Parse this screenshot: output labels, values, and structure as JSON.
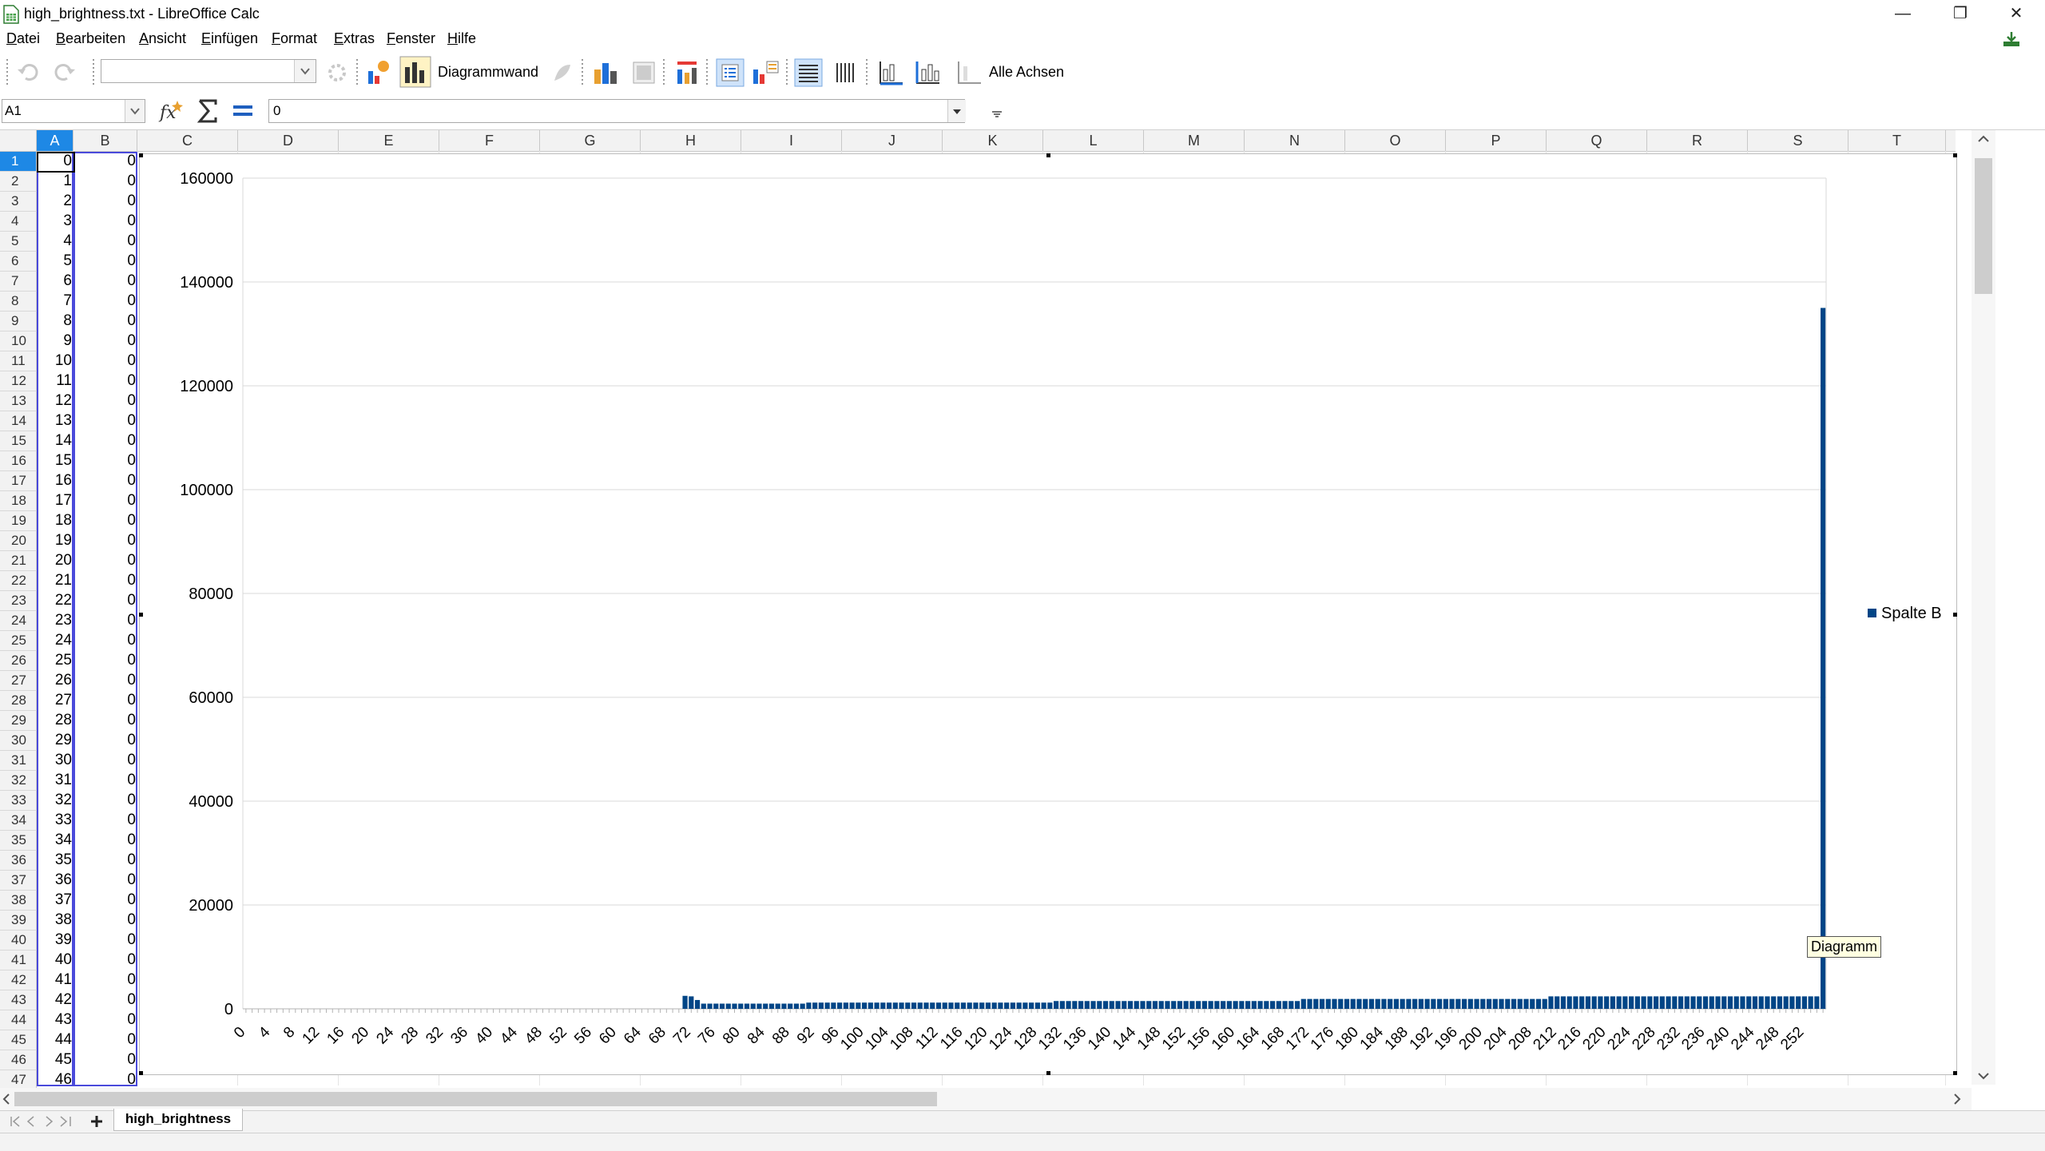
{
  "window": {
    "title": "high_brightness.txt - LibreOffice Calc",
    "buttons": {
      "minimize": "—",
      "maximize": "❐",
      "close": "✕"
    }
  },
  "menu": [
    "Datei",
    "Bearbeiten",
    "Ansicht",
    "Einfügen",
    "Format",
    "Extras",
    "Fenster",
    "Hilfe"
  ],
  "toolbar": {
    "object_select_value": "",
    "chart_wall_label": "Diagrammwand",
    "all_axes_label": "Alle Achsen"
  },
  "formula": {
    "name_box": "A1",
    "content": "0"
  },
  "columns": [
    "A",
    "B",
    "C",
    "D",
    "E",
    "F",
    "G",
    "H",
    "I",
    "J",
    "K",
    "L",
    "M",
    "N",
    "O",
    "P",
    "Q",
    "R",
    "S",
    "T"
  ],
  "rows": [
    {
      "n": "1",
      "a": "0",
      "b": "0"
    },
    {
      "n": "2",
      "a": "1",
      "b": "0"
    },
    {
      "n": "3",
      "a": "2",
      "b": "0"
    },
    {
      "n": "4",
      "a": "3",
      "b": "0"
    },
    {
      "n": "5",
      "a": "4",
      "b": "0"
    },
    {
      "n": "6",
      "a": "5",
      "b": "0"
    },
    {
      "n": "7",
      "a": "6",
      "b": "0"
    },
    {
      "n": "8",
      "a": "7",
      "b": "0"
    },
    {
      "n": "9",
      "a": "8",
      "b": "0"
    },
    {
      "n": "10",
      "a": "9",
      "b": "0"
    },
    {
      "n": "11",
      "a": "10",
      "b": "0"
    },
    {
      "n": "12",
      "a": "11",
      "b": "0"
    },
    {
      "n": "13",
      "a": "12",
      "b": "0"
    },
    {
      "n": "14",
      "a": "13",
      "b": "0"
    },
    {
      "n": "15",
      "a": "14",
      "b": "0"
    },
    {
      "n": "16",
      "a": "15",
      "b": "0"
    },
    {
      "n": "17",
      "a": "16",
      "b": "0"
    },
    {
      "n": "18",
      "a": "17",
      "b": "0"
    },
    {
      "n": "19",
      "a": "18",
      "b": "0"
    },
    {
      "n": "20",
      "a": "19",
      "b": "0"
    },
    {
      "n": "21",
      "a": "20",
      "b": "0"
    },
    {
      "n": "22",
      "a": "21",
      "b": "0"
    },
    {
      "n": "23",
      "a": "22",
      "b": "0"
    },
    {
      "n": "24",
      "a": "23",
      "b": "0"
    },
    {
      "n": "25",
      "a": "24",
      "b": "0"
    },
    {
      "n": "26",
      "a": "25",
      "b": "0"
    },
    {
      "n": "27",
      "a": "26",
      "b": "0"
    },
    {
      "n": "28",
      "a": "27",
      "b": "0"
    },
    {
      "n": "29",
      "a": "28",
      "b": "0"
    },
    {
      "n": "30",
      "a": "29",
      "b": "0"
    },
    {
      "n": "31",
      "a": "30",
      "b": "0"
    },
    {
      "n": "32",
      "a": "31",
      "b": "0"
    },
    {
      "n": "33",
      "a": "32",
      "b": "0"
    },
    {
      "n": "34",
      "a": "33",
      "b": "0"
    },
    {
      "n": "35",
      "a": "34",
      "b": "0"
    },
    {
      "n": "36",
      "a": "35",
      "b": "0"
    },
    {
      "n": "37",
      "a": "36",
      "b": "0"
    },
    {
      "n": "38",
      "a": "37",
      "b": "0"
    },
    {
      "n": "39",
      "a": "38",
      "b": "0"
    },
    {
      "n": "40",
      "a": "39",
      "b": "0"
    },
    {
      "n": "41",
      "a": "40",
      "b": "0"
    },
    {
      "n": "42",
      "a": "41",
      "b": "0"
    },
    {
      "n": "43",
      "a": "42",
      "b": "0"
    },
    {
      "n": "44",
      "a": "43",
      "b": "0"
    },
    {
      "n": "45",
      "a": "44",
      "b": "0"
    },
    {
      "n": "46",
      "a": "45",
      "b": "0"
    },
    {
      "n": "47",
      "a": "46",
      "b": "0"
    }
  ],
  "chart_data": {
    "type": "bar",
    "x_start": 0,
    "x_end": 255,
    "x_tick_step": 4,
    "series": [
      {
        "name": "Spalte B",
        "color": "#004586",
        "values_by_range": [
          {
            "from": 0,
            "to": 70,
            "value": 0
          },
          {
            "from": 71,
            "to": 71,
            "value": 2500
          },
          {
            "from": 72,
            "to": 72,
            "value": 2400
          },
          {
            "from": 73,
            "to": 73,
            "value": 1700
          },
          {
            "from": 74,
            "to": 90,
            "value": 1000
          },
          {
            "from": 91,
            "to": 130,
            "value": 1200
          },
          {
            "from": 131,
            "to": 170,
            "value": 1500
          },
          {
            "from": 171,
            "to": 210,
            "value": 1900
          },
          {
            "from": 211,
            "to": 254,
            "value": 2400
          },
          {
            "from": 255,
            "to": 255,
            "value": 135000
          }
        ]
      }
    ],
    "ylim": [
      0,
      160000
    ],
    "y_ticks": [
      "0",
      "20000",
      "40000",
      "60000",
      "80000",
      "100000",
      "120000",
      "140000",
      "160000"
    ],
    "grid": true,
    "legend_position": "right"
  },
  "chart_tooltip": "Diagramm",
  "sheet_tab": "high_brightness"
}
